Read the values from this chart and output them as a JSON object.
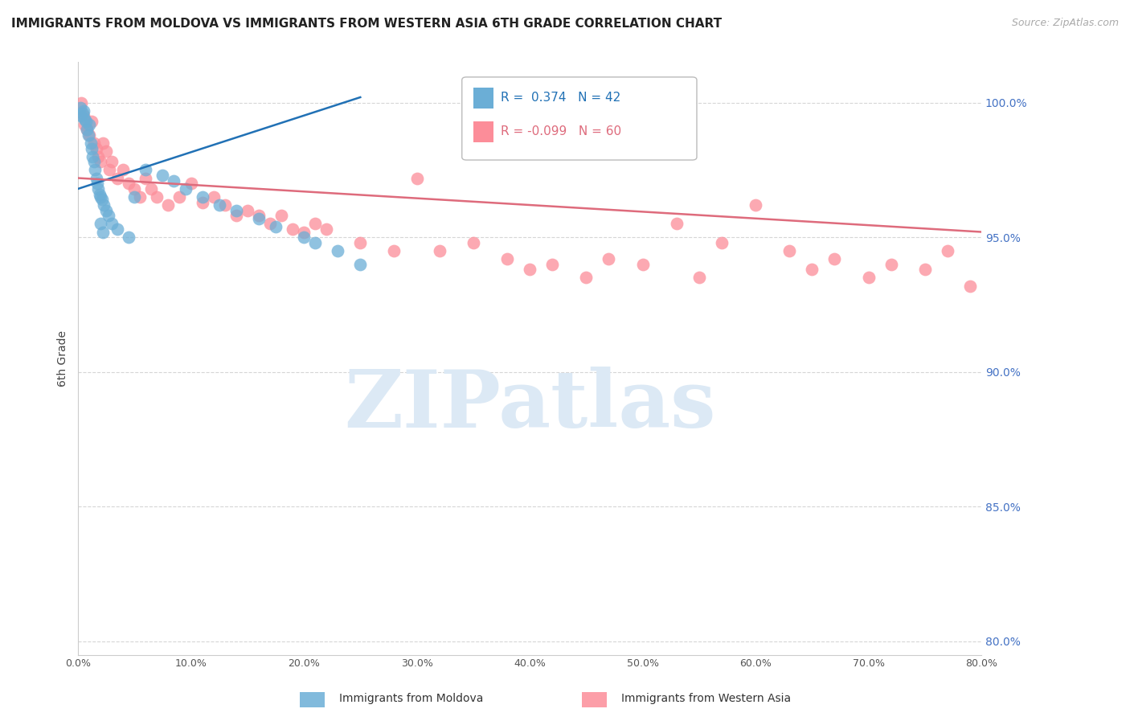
{
  "title": "IMMIGRANTS FROM MOLDOVA VS IMMIGRANTS FROM WESTERN ASIA 6TH GRADE CORRELATION CHART",
  "source": "Source: ZipAtlas.com",
  "ylabel": "6th Grade",
  "x_ticks": [
    0.0,
    10.0,
    20.0,
    30.0,
    40.0,
    50.0,
    60.0,
    70.0,
    80.0
  ],
  "x_tick_labels": [
    "0.0%",
    "10.0%",
    "20.0%",
    "30.0%",
    "40.0%",
    "50.0%",
    "60.0%",
    "70.0%",
    "80.0%"
  ],
  "y_ticks": [
    80.0,
    85.0,
    90.0,
    95.0,
    100.0
  ],
  "y_tick_labels": [
    "80.0%",
    "85.0%",
    "90.0%",
    "95.0%",
    "100.0%"
  ],
  "xlim": [
    0.0,
    80.0
  ],
  "ylim": [
    79.5,
    101.5
  ],
  "color_moldova": "#6baed6",
  "color_western_asia": "#fc8d99",
  "color_trendline_moldova": "#2171b5",
  "color_trendline_western_asia": "#de6b7c",
  "color_title": "#222222",
  "color_source": "#aaaaaa",
  "color_axis_right": "#4472C4",
  "watermark_text": "ZIPatlas",
  "watermark_color": "#dce9f5",
  "background_color": "#ffffff",
  "moldova_x": [
    0.2,
    0.3,
    0.4,
    0.5,
    0.6,
    0.7,
    0.8,
    0.9,
    1.0,
    1.1,
    1.2,
    1.3,
    1.4,
    1.5,
    1.6,
    1.7,
    1.8,
    1.9,
    2.0,
    2.1,
    2.3,
    2.5,
    2.7,
    3.0,
    3.5,
    4.5,
    5.0,
    6.0,
    7.5,
    8.5,
    9.5,
    11.0,
    12.5,
    14.0,
    16.0,
    17.5,
    20.0,
    21.0,
    23.0,
    25.0,
    2.0,
    2.2
  ],
  "moldova_y": [
    99.8,
    99.5,
    99.6,
    99.7,
    99.4,
    99.3,
    99.0,
    98.8,
    99.2,
    98.5,
    98.3,
    98.0,
    97.8,
    97.5,
    97.2,
    97.0,
    96.8,
    96.6,
    96.5,
    96.4,
    96.2,
    96.0,
    95.8,
    95.5,
    95.3,
    95.0,
    96.5,
    97.5,
    97.3,
    97.1,
    96.8,
    96.5,
    96.2,
    96.0,
    95.7,
    95.4,
    95.0,
    94.8,
    94.5,
    94.0,
    95.5,
    95.2
  ],
  "western_asia_x": [
    0.3,
    0.5,
    0.6,
    0.8,
    1.0,
    1.2,
    1.4,
    1.6,
    1.8,
    2.0,
    2.2,
    2.5,
    2.8,
    3.0,
    3.5,
    4.0,
    4.5,
    5.0,
    5.5,
    6.0,
    6.5,
    7.0,
    8.0,
    9.0,
    10.0,
    11.0,
    12.0,
    13.0,
    14.0,
    15.0,
    16.0,
    17.0,
    18.0,
    19.0,
    20.0,
    21.0,
    22.0,
    25.0,
    28.0,
    30.0,
    32.0,
    35.0,
    38.0,
    40.0,
    42.0,
    45.0,
    47.0,
    50.0,
    53.0,
    55.0,
    57.0,
    60.0,
    63.0,
    65.0,
    67.0,
    70.0,
    72.0,
    75.0,
    77.0,
    79.0
  ],
  "western_asia_y": [
    100.0,
    99.5,
    99.2,
    99.0,
    98.8,
    99.3,
    98.5,
    98.3,
    98.0,
    97.8,
    98.5,
    98.2,
    97.5,
    97.8,
    97.2,
    97.5,
    97.0,
    96.8,
    96.5,
    97.2,
    96.8,
    96.5,
    96.2,
    96.5,
    97.0,
    96.3,
    96.5,
    96.2,
    95.8,
    96.0,
    95.8,
    95.5,
    95.8,
    95.3,
    95.2,
    95.5,
    95.3,
    94.8,
    94.5,
    97.2,
    94.5,
    94.8,
    94.2,
    93.8,
    94.0,
    93.5,
    94.2,
    94.0,
    95.5,
    93.5,
    94.8,
    96.2,
    94.5,
    93.8,
    94.2,
    93.5,
    94.0,
    93.8,
    94.5,
    93.2
  ],
  "trendline_mol_x0": 0.0,
  "trendline_mol_x1": 25.0,
  "trendline_wea_x0": 0.0,
  "trendline_wea_x1": 80.0
}
